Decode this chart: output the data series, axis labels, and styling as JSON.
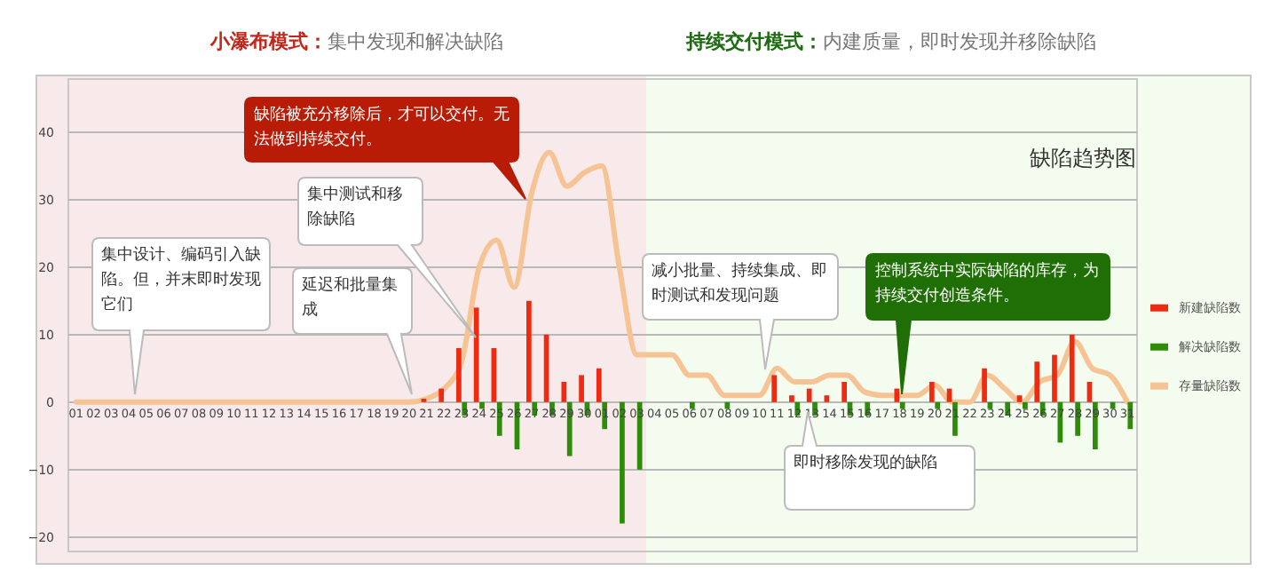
{
  "chart_data": {
    "type": "bar",
    "title": "缺陷趋势图",
    "categories": [
      "01",
      "02",
      "03",
      "04",
      "05",
      "06",
      "07",
      "08",
      "09",
      "10",
      "11",
      "12",
      "13",
      "14",
      "15",
      "16",
      "17",
      "18",
      "19",
      "20",
      "21",
      "22",
      "23",
      "24",
      "25",
      "26",
      "27",
      "28",
      "29",
      "30",
      "01",
      "02",
      "03",
      "04",
      "05",
      "06",
      "07",
      "08",
      "09",
      "10",
      "11",
      "12",
      "13",
      "14",
      "15",
      "16",
      "17",
      "18",
      "19",
      "20",
      "21",
      "22",
      "23",
      "24",
      "25",
      "26",
      "27",
      "28",
      "29",
      "30",
      "31"
    ],
    "series": [
      {
        "name": "新建缺陷数",
        "color": "#ee2a10",
        "values": [
          0,
          0,
          0,
          0,
          0,
          0,
          0,
          0,
          0,
          0,
          0,
          0,
          0,
          0,
          0,
          0,
          0,
          0,
          0,
          0,
          0.5,
          2,
          8,
          14,
          8,
          0,
          15,
          10,
          3,
          4,
          5,
          0,
          0,
          0,
          0,
          0,
          0,
          0,
          0,
          0,
          4,
          1,
          2,
          1,
          3,
          0,
          0,
          2,
          0,
          3,
          2,
          0,
          5,
          0,
          1,
          6,
          7,
          10,
          3,
          0,
          0
        ]
      },
      {
        "name": "解决缺陷数",
        "color": "#2e8c0a",
        "values": [
          0,
          0,
          0,
          0,
          0,
          0,
          0,
          0,
          0,
          0,
          0,
          0,
          0,
          0,
          0,
          0,
          0,
          0,
          0,
          0,
          0,
          0,
          -2,
          -1,
          -5,
          -7,
          -2,
          -2,
          -8,
          -2,
          -4,
          -18,
          -10,
          0,
          0,
          -1,
          0,
          -1,
          0,
          0,
          0,
          -2,
          -2,
          0,
          -2,
          -2,
          0,
          -1,
          0,
          -1,
          -5,
          0,
          -1,
          -2,
          -1,
          -2,
          -6,
          -5,
          -7,
          -1,
          -4
        ]
      },
      {
        "name": "存量缺陷数",
        "type": "line",
        "color": "#f6c394",
        "values": [
          0,
          0,
          0,
          0,
          0,
          0,
          0,
          0,
          0,
          0,
          0,
          0,
          0,
          0,
          0,
          0,
          0,
          0,
          0,
          0,
          0.5,
          2,
          6,
          20,
          24,
          17,
          31,
          37,
          32,
          34,
          35,
          20,
          7,
          7,
          7,
          4,
          4,
          1,
          1,
          1,
          5,
          3,
          3,
          4,
          4,
          1.5,
          1,
          1,
          1,
          2.5,
          0,
          0,
          4,
          2,
          0,
          3,
          4,
          9,
          5,
          4,
          0
        ]
      }
    ],
    "ylim": [
      -22,
      48
    ],
    "yticks": [
      -20,
      -10,
      0,
      10,
      20,
      30,
      40
    ],
    "grid": "y",
    "legend": "right",
    "annotations": [
      "小瀑布模式：集中发现和解决缺陷",
      "持续交付模式：内建质量，即时发现并移除缺陷",
      "集中设计、编码引入缺陷。但，并末即时发现它们",
      "延迟和批量集成",
      "集中测试和移除缺陷",
      "缺陷被充分移除后，才可以交付。无法做到持续交付。",
      "减小批量、持续集成、即时测试和发现问题",
      "即时移除发现的缺陷",
      "控制系统中实际缺陷的库存，为持续交付创造条件。"
    ]
  }
}
